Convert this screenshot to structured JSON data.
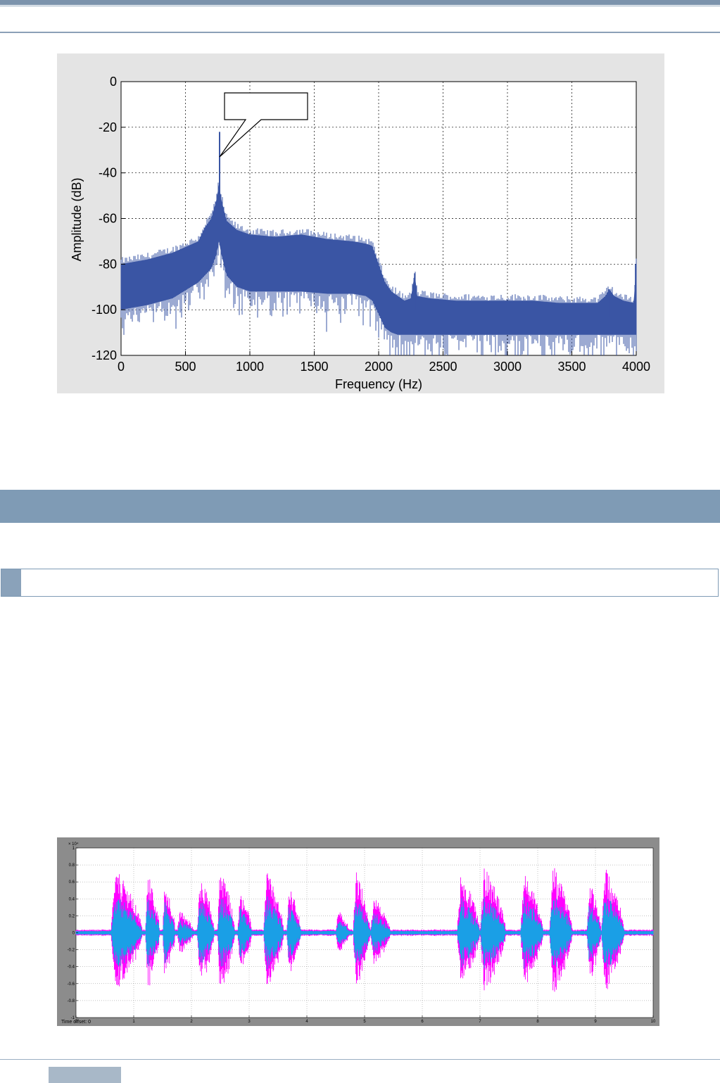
{
  "chart_data": [
    {
      "type": "line",
      "title": "",
      "xlabel": "Frequency (Hz)",
      "ylabel": "Amplitude (dB)",
      "xlim": [
        0,
        4000
      ],
      "ylim": [
        -120,
        0
      ],
      "x_ticks": [
        "0",
        "500",
        "1000",
        "1500",
        "2000",
        "2500",
        "3000",
        "3500",
        "4000"
      ],
      "y_ticks": [
        "0",
        "-20",
        "-40",
        "-60",
        "-80",
        "-100",
        "-120"
      ],
      "grid": true,
      "color": "#3a55a4",
      "envelope": {
        "x": [
          0,
          200,
          400,
          600,
          650,
          700,
          740,
          760,
          780,
          820,
          900,
          1000,
          1200,
          1400,
          1600,
          1800,
          1900,
          1950,
          2000,
          2050,
          2100,
          2150,
          2200,
          2250,
          2280,
          2300,
          2400,
          2600,
          2800,
          3000,
          3200,
          3400,
          3600,
          3700,
          3760,
          3790,
          3830,
          3900,
          3980,
          4000
        ],
        "upper": [
          -80,
          -78,
          -75,
          -70,
          -64,
          -60,
          -52,
          -45,
          -52,
          -61,
          -65,
          -67,
          -68,
          -67,
          -69,
          -70,
          -71,
          -72,
          -80,
          -88,
          -92,
          -94,
          -96,
          -95,
          -84,
          -94,
          -95,
          -96,
          -96,
          -96,
          -96,
          -97,
          -97,
          -97,
          -94,
          -91,
          -94,
          -96,
          -97,
          -80
        ],
        "mid": [
          -90,
          -88,
          -85,
          -79,
          -76,
          -72,
          -65,
          -58,
          -64,
          -72,
          -74,
          -75,
          -76,
          -75,
          -76,
          -77,
          -78,
          -80,
          -86,
          -96,
          -102,
          -104,
          -104,
          -103,
          -100,
          -104,
          -104,
          -104,
          -104,
          -104,
          -104,
          -105,
          -105,
          -104,
          -103,
          -103,
          -103,
          -104,
          -104,
          -104
        ],
        "lower": [
          -100,
          -98,
          -95,
          -88,
          -85,
          -82,
          -76,
          -70,
          -76,
          -85,
          -90,
          -92,
          -92,
          -92,
          -93,
          -93,
          -94,
          -96,
          -102,
          -108,
          -110,
          -111,
          -111,
          -111,
          -111,
          -111,
          -111,
          -111,
          -111,
          -111,
          -111,
          -111,
          -111,
          -111,
          -111,
          -111,
          -111,
          -111,
          -111,
          -111
        ]
      },
      "peaks": [
        {
          "x": 765,
          "y": -22
        },
        {
          "x": 2280,
          "y": -84
        },
        {
          "x": 3790,
          "y": -91
        },
        {
          "x": 3995,
          "y": -80
        }
      ],
      "annotation": {
        "x": 765,
        "y": -33,
        "text": ""
      }
    },
    {
      "type": "line",
      "title": "",
      "exponent_label": "× 10⁴",
      "footer_text": "Time offset: 0",
      "xlim": [
        0,
        10
      ],
      "ylim": [
        -1,
        1
      ],
      "x_ticks": [
        "0",
        "1",
        "2",
        "3",
        "4",
        "5",
        "6",
        "7",
        "8",
        "9",
        "10"
      ],
      "y_ticks": [
        "1",
        "0.8",
        "0.6",
        "0.4",
        "0.2",
        "0",
        "-0.2",
        "-0.4",
        "-0.6",
        "-0.8",
        "-1"
      ],
      "grid": true,
      "series": [
        {
          "color": "#ff00ff"
        },
        {
          "color": "#1a9fe6"
        }
      ],
      "bursts": [
        {
          "start": 0.6,
          "end": 1.15,
          "amp": 0.84
        },
        {
          "start": 1.2,
          "end": 1.45,
          "amp": 0.8
        },
        {
          "start": 1.5,
          "end": 1.72,
          "amp": 0.7
        },
        {
          "start": 1.75,
          "end": 2.05,
          "amp": 0.3
        },
        {
          "start": 2.1,
          "end": 2.4,
          "amp": 0.78
        },
        {
          "start": 2.45,
          "end": 2.75,
          "amp": 0.9
        },
        {
          "start": 2.8,
          "end": 3.05,
          "amp": 0.55
        },
        {
          "start": 3.25,
          "end": 3.6,
          "amp": 0.82
        },
        {
          "start": 3.65,
          "end": 3.9,
          "amp": 0.62
        },
        {
          "start": 4.5,
          "end": 4.75,
          "amp": 0.3
        },
        {
          "start": 4.8,
          "end": 5.1,
          "amp": 0.82
        },
        {
          "start": 5.1,
          "end": 5.45,
          "amp": 0.48
        },
        {
          "start": 6.6,
          "end": 7.0,
          "amp": 0.8
        },
        {
          "start": 7.0,
          "end": 7.45,
          "amp": 0.88
        },
        {
          "start": 7.7,
          "end": 8.1,
          "amp": 0.82
        },
        {
          "start": 8.2,
          "end": 8.6,
          "amp": 0.9
        },
        {
          "start": 8.85,
          "end": 9.1,
          "amp": 0.7
        },
        {
          "start": 9.1,
          "end": 9.5,
          "amp": 0.88
        }
      ]
    }
  ]
}
